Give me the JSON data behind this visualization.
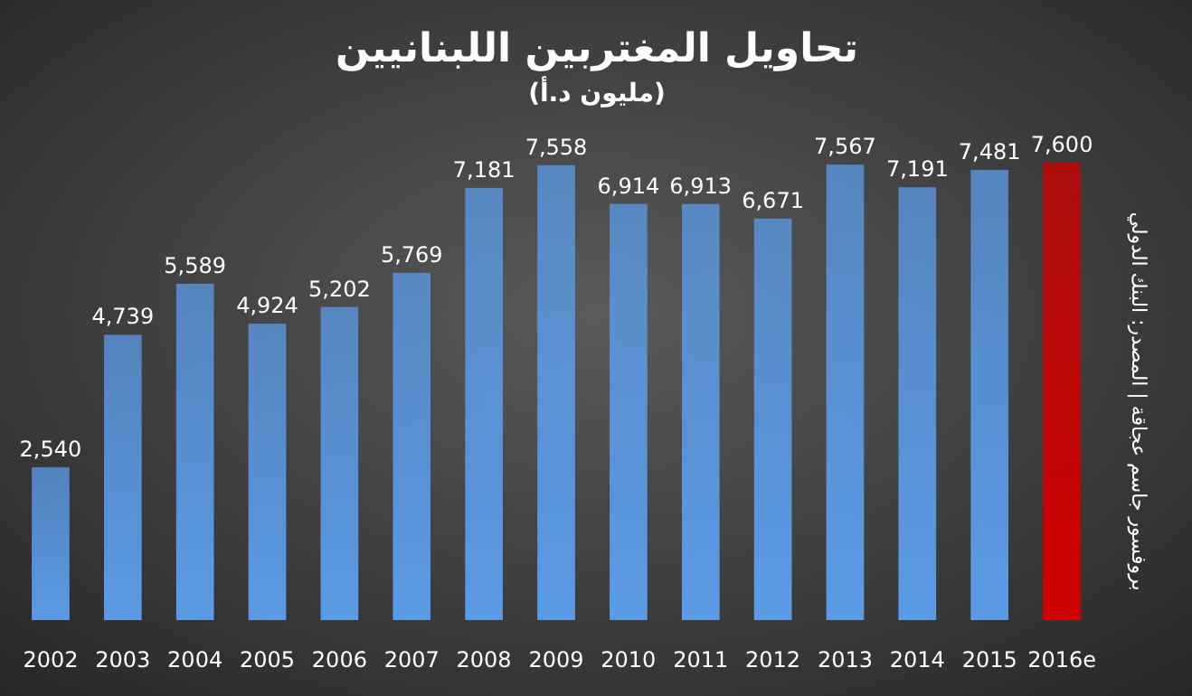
{
  "chart_data": {
    "type": "bar",
    "title": "تحاويل المغتربين اللبنانيين",
    "subtitle": "(مليون د.أ)",
    "categories": [
      "2002",
      "2003",
      "2004",
      "2005",
      "2006",
      "2007",
      "2008",
      "2009",
      "2010",
      "2011",
      "2012",
      "2013",
      "2014",
      "2015",
      "2016e"
    ],
    "values": [
      2540,
      4739,
      5589,
      4924,
      5202,
      5769,
      7181,
      7558,
      6914,
      6913,
      6671,
      7567,
      7191,
      7481,
      7600
    ],
    "colors": [
      "#5b9be6",
      "#5b9be6",
      "#5b9be6",
      "#5b9be6",
      "#5b9be6",
      "#5b9be6",
      "#5b9be6",
      "#5b9be6",
      "#5b9be6",
      "#5b9be6",
      "#5b9be6",
      "#5b9be6",
      "#5b9be6",
      "#5b9be6",
      "#d00000"
    ],
    "value_labels": [
      "2,540",
      "4,739",
      "5,589",
      "4,924",
      "5,202",
      "5,769",
      "7,181",
      "7,558",
      "6,914",
      "6,913",
      "6,671",
      "7,567",
      "7,191",
      "7,481",
      "7,600"
    ],
    "annotations": [
      "بروفسور جاسم عجاقة | المصدر: البنك الدولي"
    ]
  }
}
